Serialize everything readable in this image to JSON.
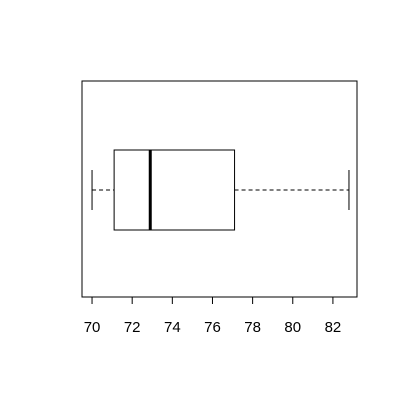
{
  "chart_data": {
    "type": "boxplot",
    "orientation": "horizontal",
    "title": "",
    "xlabel": "",
    "ylabel": "",
    "xlim": [
      69.5,
      83.2
    ],
    "x_ticks": [
      70,
      72,
      74,
      76,
      78,
      80,
      82
    ],
    "x_tick_labels": [
      "70",
      "72",
      "74",
      "76",
      "78",
      "80",
      "82"
    ],
    "grid": false,
    "box": {
      "whisker_low": 70.0,
      "q1": 71.1,
      "median": 72.9,
      "q3": 77.1,
      "whisker_high": 82.8
    }
  }
}
